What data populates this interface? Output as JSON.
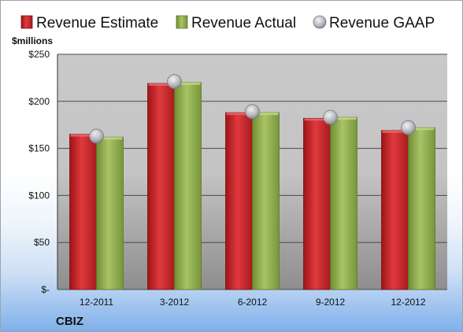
{
  "chart_data": {
    "type": "bar",
    "categories": [
      "12-2011",
      "3-2012",
      "6-2012",
      "9-2012",
      "12-2012"
    ],
    "series": [
      {
        "name": "Revenue Estimate",
        "kind": "bar",
        "color": "#c8262a",
        "values": [
          165,
          219,
          188,
          182,
          169
        ]
      },
      {
        "name": "Revenue Actual",
        "kind": "bar",
        "color": "#8fb04c",
        "values": [
          162,
          220,
          188,
          183,
          172
        ]
      },
      {
        "name": "Revenue GAAP",
        "kind": "marker",
        "color": "#b8bcc2",
        "values": [
          163,
          221,
          189,
          183,
          172
        ]
      }
    ],
    "ylabel": "$millions",
    "ylim": [
      0,
      250
    ],
    "yticks": [
      0,
      50,
      100,
      150,
      200,
      250
    ],
    "ytick_labels": [
      "$-",
      "$50",
      "$100",
      "$150",
      "$200",
      "$250"
    ],
    "grid": true,
    "legend_position": "top"
  },
  "footer": {
    "company": "CBIZ"
  }
}
